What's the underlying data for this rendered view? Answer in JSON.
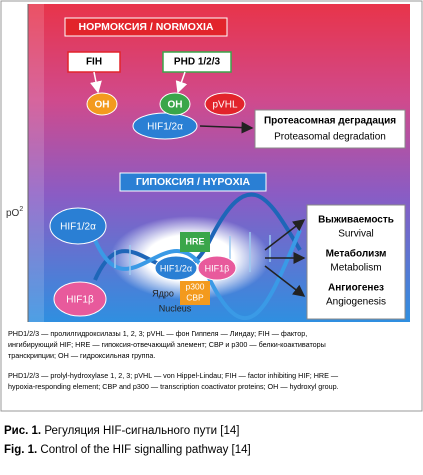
{
  "po2": {
    "base": "pO",
    "sub": "2"
  },
  "normoxia": {
    "header": "НОРМОКСИЯ / NORMOXIA",
    "fih": "FIH",
    "phd": "PHD 1/2/3",
    "oh_1": "OH",
    "oh_2": "OH",
    "pvhl": "pVHL",
    "hif": "HIF1/2α",
    "degradation_ru": "Протеасомная деградация",
    "degradation_en": "Proteasomal degradation"
  },
  "hypoxia": {
    "header": "ГИПОКСИЯ / HYPOXIA",
    "hif_left": "HIF1/2α",
    "hif1b_left": "HIF1β",
    "hre": "HRE",
    "hif_complex": "HIF1/2α",
    "hif1b_complex": "HIF1β",
    "p300": "p300",
    "cbp": "CBP",
    "nucleus_ru": "Ядро",
    "nucleus_en": "Nucleus",
    "outcomes": [
      {
        "ru": "Выживаемость",
        "en": "Survival"
      },
      {
        "ru": "Метаболизм",
        "en": "Metabolism"
      },
      {
        "ru": "Ангиогенез",
        "en": "Angiogenesis"
      }
    ]
  },
  "notes_ru": [
    "PHD1/2/3 — пролилгидроксилазы 1, 2, 3; pVHL — фон Гиппеля — Линдау; FIH — фактор,",
    "ингибирующий HIF; HRE — гипоксия-отвечающий элемент; CBP и p300 — белки-коактиваторы",
    "транскрипции; OH — гидроксильная группа."
  ],
  "notes_en": [
    "PHD1/2/3 — prolyl-hydroxylase 1, 2, 3; pVHL — von Hippel-Lindau; FIH — factor inhibiting HIF; HRE —",
    "hypoxia-responding element; CBP and p300 — transcription coactivator proteins; OH — hydroxyl group."
  ],
  "caption_ru": {
    "label": "Рис. 1.",
    "text": " Регуляция HIF-сигнального пути [14]"
  },
  "caption_en": {
    "label": "Fig. 1.",
    "text": " Control of the HIF signalling pathway [14]"
  }
}
